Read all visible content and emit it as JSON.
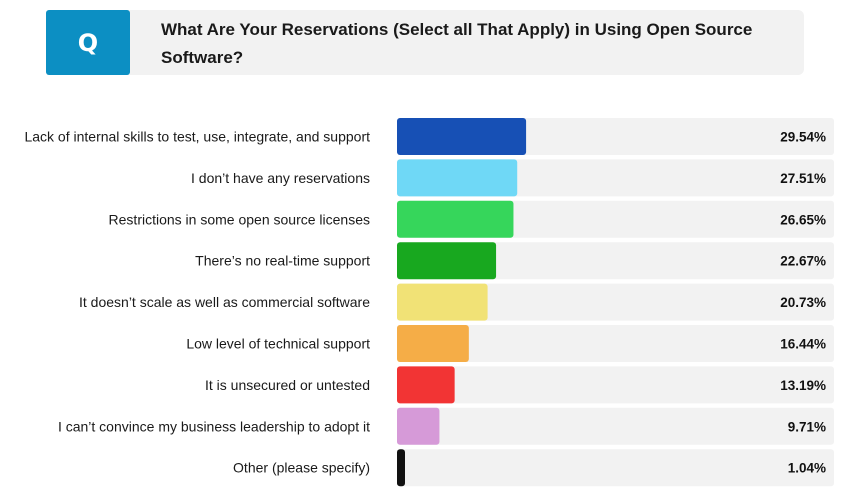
{
  "question": {
    "badge": "Q",
    "text": "What Are Your Reservations (Select all That Apply) in Using Open Source Software?"
  },
  "chart_data": {
    "type": "bar",
    "orientation": "horizontal",
    "title": "What Are Your Reservations (Select all That Apply) in Using Open Source Software?",
    "categories": [
      "Lack of internal skills to test, use, integrate, and support",
      "I don’t have any reservations",
      "Restrictions in some open source licenses",
      "There’s no real-time support",
      "It doesn’t scale as well as commercial software",
      "Low level of technical support",
      "It is unsecured or untested",
      "I can’t convince my business leadership to adopt it",
      "Other (please specify)"
    ],
    "values": [
      29.54,
      27.51,
      26.65,
      22.67,
      20.73,
      16.44,
      13.19,
      9.71,
      1.04
    ],
    "value_labels": [
      "29.54%",
      "27.51%",
      "26.65%",
      "22.67%",
      "20.73%",
      "16.44%",
      "13.19%",
      "9.71%",
      "1.04%"
    ],
    "unit": "%",
    "xlim": [
      0,
      100
    ],
    "bar_colors": [
      "#1750b5",
      "#6fd8f6",
      "#36d65b",
      "#18a81f",
      "#f1e276",
      "#f5ad47",
      "#f23434",
      "#d69ad8",
      "#111111"
    ],
    "track_color": "#f2f2f2",
    "grid": false,
    "legend": "none"
  }
}
